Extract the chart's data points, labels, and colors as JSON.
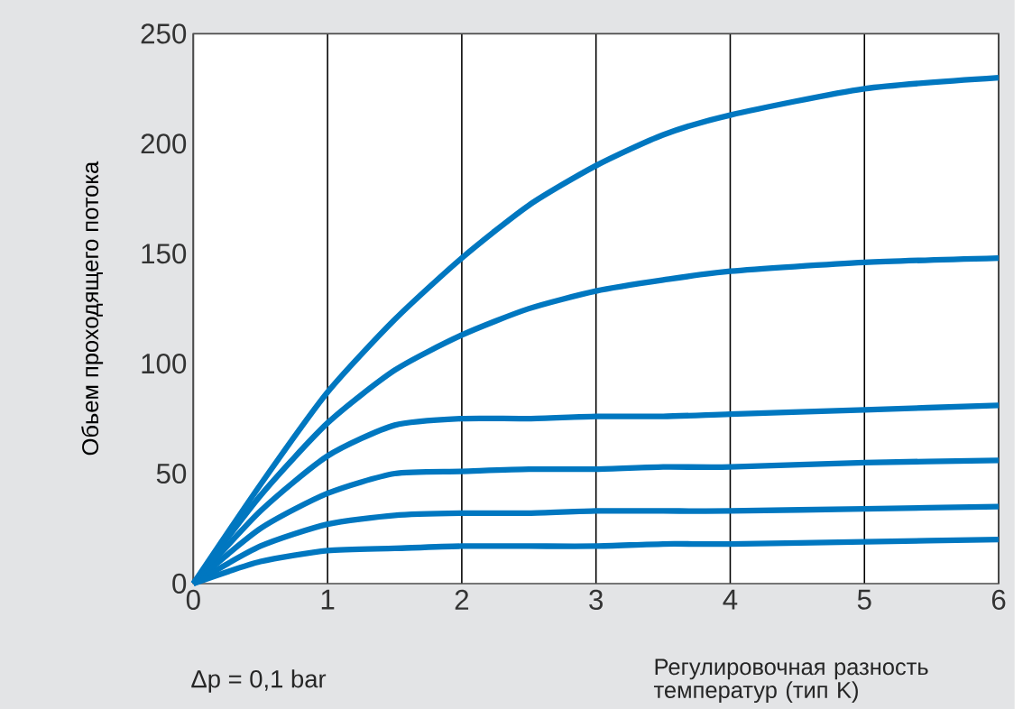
{
  "chart_data": {
    "type": "line",
    "xlabel": "Регулировочная разность температур (тип K)",
    "ylabel": "Обьем проходящего потока",
    "annotations": [
      "Δp = 0,1 bar"
    ],
    "x": [
      0,
      0.5,
      1,
      1.5,
      2,
      2.5,
      3,
      3.5,
      4,
      5,
      6
    ],
    "series": [
      {
        "color": "#0077c0",
        "values": [
          0,
          45,
          87,
          120,
          148,
          172,
          190,
          204,
          213,
          225,
          230
        ]
      },
      {
        "color": "#0077c0",
        "values": [
          0,
          40,
          73,
          97,
          113,
          125,
          133,
          138,
          142,
          146,
          148
        ]
      },
      {
        "color": "#0077c0",
        "values": [
          0,
          33,
          58,
          72,
          75,
          75,
          76,
          76,
          77,
          79,
          81
        ]
      },
      {
        "color": "#0077c0",
        "values": [
          0,
          25,
          41,
          50,
          51,
          52,
          52,
          53,
          53,
          55,
          56
        ]
      },
      {
        "color": "#0077c0",
        "values": [
          0,
          17,
          27,
          31,
          32,
          32,
          33,
          33,
          33,
          34,
          35
        ]
      },
      {
        "color": "#0077c0",
        "values": [
          0,
          10,
          15,
          16,
          17,
          17,
          17,
          18,
          18,
          19,
          20
        ]
      }
    ],
    "xlim": [
      0,
      6
    ],
    "ylim": [
      0,
      250
    ],
    "xticks": [
      0,
      1,
      2,
      3,
      4,
      5,
      6
    ],
    "yticks": [
      0,
      50,
      100,
      150,
      200,
      250
    ],
    "grid": "x",
    "marker": "none",
    "line_style": "solid"
  }
}
